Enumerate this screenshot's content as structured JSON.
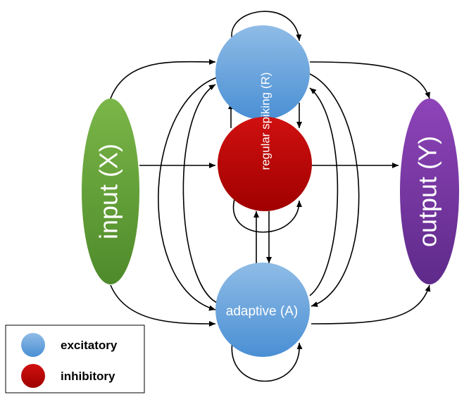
{
  "nodes": {
    "input": {
      "label": "input (X)",
      "color_top": "#7ab648",
      "color_bottom": "#4e8a2a"
    },
    "regular": {
      "label": "regular spiking (R)",
      "color_top": "#8fbce6",
      "color_bottom": "#4a8fd4"
    },
    "inhibitory": {
      "label": "",
      "color_top": "#d01010",
      "color_bottom": "#a00000"
    },
    "adaptive": {
      "label": "adaptive (A)",
      "color_top": "#8fbce6",
      "color_bottom": "#4a8fd4"
    },
    "output": {
      "label": "output (Y)",
      "color_top": "#8e44b8",
      "color_bottom": "#5e2a8a"
    }
  },
  "legend": {
    "items": [
      {
        "label": "excitatory",
        "color": "#5b9bd5"
      },
      {
        "label": "inhibitory",
        "color": "#c00000"
      }
    ]
  }
}
